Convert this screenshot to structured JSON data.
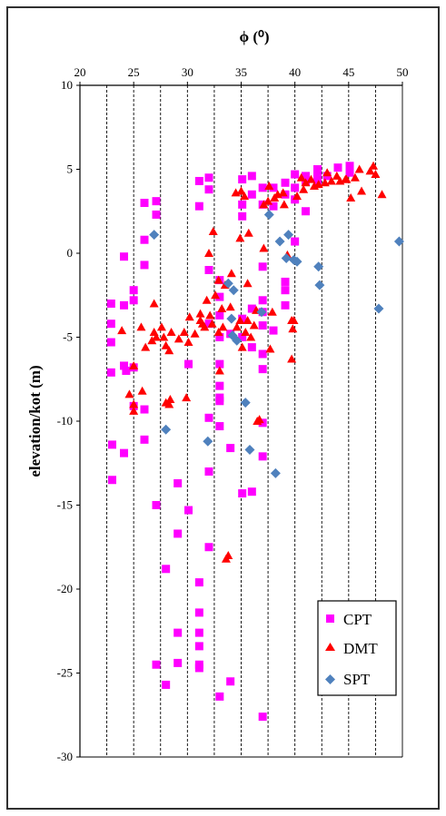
{
  "chart_data": {
    "type": "scatter",
    "title": "",
    "xlabel": "ϕ (⁰)",
    "ylabel": "elevation/kot (m)",
    "x_axis_position": "top",
    "xlim": [
      20,
      50
    ],
    "ylim": [
      -30,
      10
    ],
    "x_ticks": [
      "20",
      "25",
      "30",
      "35",
      "40",
      "45",
      "50"
    ],
    "y_ticks": [
      "10",
      "5",
      "0",
      "-5",
      "-10",
      "-15",
      "-20",
      "-25",
      "-30"
    ],
    "grid": "vertical dashed lines at every 2.5 degrees",
    "legend_position": "bottom-right",
    "series": [
      {
        "name": "CPT",
        "marker": "square",
        "color": "#ff00ff",
        "points": [
          [
            22.9,
            -3.0
          ],
          [
            22.9,
            -4.2
          ],
          [
            22.9,
            -5.3
          ],
          [
            22.9,
            -7.1
          ],
          [
            23.0,
            -11.4
          ],
          [
            23.0,
            -13.5
          ],
          [
            24.1,
            -0.2
          ],
          [
            24.1,
            -3.1
          ],
          [
            24.1,
            -6.7
          ],
          [
            24.1,
            -11.9
          ],
          [
            24.3,
            -7.0
          ],
          [
            25.0,
            -2.2
          ],
          [
            25.0,
            -2.8
          ],
          [
            25.0,
            -6.8
          ],
          [
            25.0,
            -9.1
          ],
          [
            26.0,
            3.0
          ],
          [
            26.0,
            0.8
          ],
          [
            26.0,
            -0.7
          ],
          [
            26.0,
            -9.3
          ],
          [
            26.0,
            -11.1
          ],
          [
            27.1,
            3.1
          ],
          [
            27.1,
            2.3
          ],
          [
            27.1,
            -15.0
          ],
          [
            27.1,
            -24.5
          ],
          [
            28.0,
            -18.8
          ],
          [
            28.0,
            -25.7
          ],
          [
            29.1,
            -13.7
          ],
          [
            29.1,
            -16.7
          ],
          [
            29.1,
            -22.6
          ],
          [
            29.1,
            -24.4
          ],
          [
            30.1,
            -6.6
          ],
          [
            30.1,
            -15.3
          ],
          [
            31.1,
            4.3
          ],
          [
            31.1,
            2.8
          ],
          [
            31.1,
            -19.6
          ],
          [
            31.1,
            -21.4
          ],
          [
            31.1,
            -22.6
          ],
          [
            31.1,
            -23.4
          ],
          [
            31.1,
            -24.5
          ],
          [
            31.1,
            -24.7
          ],
          [
            32.0,
            4.5
          ],
          [
            32.0,
            3.8
          ],
          [
            32.0,
            -1.0
          ],
          [
            32.0,
            -4.2
          ],
          [
            32.0,
            -9.8
          ],
          [
            32.0,
            -13.0
          ],
          [
            32.0,
            -17.5
          ],
          [
            33.0,
            -1.6
          ],
          [
            33.0,
            -2.6
          ],
          [
            33.0,
            -3.7
          ],
          [
            33.0,
            -5.0
          ],
          [
            33.0,
            -6.6
          ],
          [
            33.0,
            -7.9
          ],
          [
            33.0,
            -8.6
          ],
          [
            33.0,
            -8.8
          ],
          [
            33.0,
            -10.3
          ],
          [
            33.0,
            -26.4
          ],
          [
            34.0,
            -4.8
          ],
          [
            34.0,
            -11.6
          ],
          [
            34.0,
            -25.5
          ],
          [
            35.1,
            4.4
          ],
          [
            35.1,
            2.9
          ],
          [
            35.1,
            2.2
          ],
          [
            35.1,
            -3.9
          ],
          [
            35.1,
            -5.0
          ],
          [
            35.1,
            -14.3
          ],
          [
            36.0,
            4.6
          ],
          [
            36.0,
            3.5
          ],
          [
            36.0,
            -3.3
          ],
          [
            36.0,
            -5.6
          ],
          [
            36.0,
            -14.2
          ],
          [
            37.0,
            3.9
          ],
          [
            37.0,
            2.9
          ],
          [
            37.0,
            -0.8
          ],
          [
            37.0,
            -2.8
          ],
          [
            37.0,
            -3.5
          ],
          [
            37.0,
            -4.3
          ],
          [
            37.0,
            -6.0
          ],
          [
            37.0,
            -6.9
          ],
          [
            37.0,
            -10.1
          ],
          [
            37.0,
            -12.1
          ],
          [
            37.0,
            -27.6
          ],
          [
            38.0,
            3.9
          ],
          [
            38.0,
            2.8
          ],
          [
            38.0,
            -4.6
          ],
          [
            39.1,
            4.2
          ],
          [
            39.1,
            3.5
          ],
          [
            39.1,
            -1.7
          ],
          [
            39.1,
            -2.2
          ],
          [
            39.1,
            -3.1
          ],
          [
            40.0,
            4.7
          ],
          [
            40.0,
            3.9
          ],
          [
            40.0,
            3.2
          ],
          [
            40.0,
            0.7
          ],
          [
            41.0,
            4.6
          ],
          [
            41.0,
            4.3
          ],
          [
            41.0,
            2.5
          ],
          [
            42.1,
            5.0
          ],
          [
            42.1,
            4.6
          ],
          [
            42.1,
            4.2
          ],
          [
            43.0,
            4.6
          ],
          [
            44.0,
            5.1
          ],
          [
            45.1,
            5.2
          ],
          [
            45.1,
            4.8
          ]
        ]
      },
      {
        "name": "DMT",
        "marker": "triangle",
        "color": "#ff0000",
        "points": [
          [
            23.9,
            -4.6
          ],
          [
            24.6,
            -8.4
          ],
          [
            25.0,
            -6.7
          ],
          [
            25.0,
            -9.0
          ],
          [
            25.0,
            -9.4
          ],
          [
            25.7,
            -4.4
          ],
          [
            25.8,
            -8.2
          ],
          [
            26.1,
            -5.6
          ],
          [
            26.7,
            -5.2
          ],
          [
            26.9,
            -3.0
          ],
          [
            26.9,
            -4.7
          ],
          [
            27.1,
            -5.0
          ],
          [
            27.6,
            -4.4
          ],
          [
            27.8,
            -5.0
          ],
          [
            28.0,
            -5.5
          ],
          [
            28.0,
            -8.9
          ],
          [
            28.3,
            -5.8
          ],
          [
            28.3,
            -9.0
          ],
          [
            28.4,
            -8.7
          ],
          [
            28.5,
            -4.7
          ],
          [
            29.2,
            -5.1
          ],
          [
            29.7,
            -4.7
          ],
          [
            29.9,
            -8.6
          ],
          [
            30.1,
            -5.3
          ],
          [
            30.2,
            -3.8
          ],
          [
            30.7,
            -4.8
          ],
          [
            31.2,
            -3.6
          ],
          [
            31.2,
            -4.0
          ],
          [
            31.4,
            -4.2
          ],
          [
            31.6,
            -4.4
          ],
          [
            31.8,
            -2.8
          ],
          [
            32.0,
            0.0
          ],
          [
            32.1,
            -3.7
          ],
          [
            32.3,
            -4.2
          ],
          [
            32.4,
            1.3
          ],
          [
            32.6,
            -2.5
          ],
          [
            32.9,
            -1.6
          ],
          [
            32.9,
            -4.7
          ],
          [
            33.0,
            -7.0
          ],
          [
            33.2,
            -3.3
          ],
          [
            33.3,
            -4.4
          ],
          [
            33.5,
            -1.9
          ],
          [
            33.6,
            -18.2
          ],
          [
            33.8,
            -18.0
          ],
          [
            34.0,
            -3.2
          ],
          [
            34.1,
            -1.2
          ],
          [
            34.5,
            3.6
          ],
          [
            34.6,
            -4.4
          ],
          [
            34.9,
            0.9
          ],
          [
            34.9,
            -4.0
          ],
          [
            35.0,
            3.7
          ],
          [
            35.1,
            -5.6
          ],
          [
            35.3,
            3.4
          ],
          [
            35.4,
            -4.7
          ],
          [
            35.6,
            -1.8
          ],
          [
            35.6,
            -4.0
          ],
          [
            35.7,
            1.2
          ],
          [
            35.9,
            -5.0
          ],
          [
            36.2,
            -4.3
          ],
          [
            36.4,
            -3.4
          ],
          [
            36.5,
            -10.0
          ],
          [
            36.7,
            -9.9
          ],
          [
            37.1,
            0.3
          ],
          [
            37.1,
            2.9
          ],
          [
            37.5,
            3.1
          ],
          [
            37.6,
            4.0
          ],
          [
            37.7,
            -5.7
          ],
          [
            37.9,
            -3.5
          ],
          [
            38.1,
            3.3
          ],
          [
            38.4,
            3.5
          ],
          [
            38.9,
            3.6
          ],
          [
            39.0,
            2.9
          ],
          [
            39.3,
            -0.1
          ],
          [
            39.7,
            -6.3
          ],
          [
            39.7,
            -4.0
          ],
          [
            39.8,
            -4.5
          ],
          [
            39.9,
            -4.0
          ],
          [
            40.2,
            3.4
          ],
          [
            40.6,
            4.5
          ],
          [
            40.8,
            3.8
          ],
          [
            41.0,
            4.2
          ],
          [
            41.5,
            4.4
          ],
          [
            41.8,
            4.0
          ],
          [
            42.2,
            4.1
          ],
          [
            42.8,
            4.2
          ],
          [
            43.0,
            4.8
          ],
          [
            43.4,
            4.3
          ],
          [
            43.9,
            4.6
          ],
          [
            44.2,
            4.3
          ],
          [
            44.7,
            4.4
          ],
          [
            44.8,
            4.4
          ],
          [
            45.2,
            3.3
          ],
          [
            45.6,
            4.5
          ],
          [
            46.0,
            5.0
          ],
          [
            46.2,
            3.7
          ],
          [
            47.0,
            4.9
          ],
          [
            47.3,
            5.2
          ],
          [
            47.5,
            4.7
          ],
          [
            48.1,
            3.5
          ]
        ]
      },
      {
        "name": "SPT",
        "marker": "diamond",
        "color": "#4f81bd",
        "points": [
          [
            26.9,
            1.1
          ],
          [
            28.0,
            -10.5
          ],
          [
            31.9,
            -11.2
          ],
          [
            33.8,
            -1.8
          ],
          [
            34.1,
            -3.9
          ],
          [
            34.2,
            -4.9
          ],
          [
            34.3,
            -2.2
          ],
          [
            34.6,
            -5.2
          ],
          [
            35.4,
            -8.9
          ],
          [
            35.8,
            -11.7
          ],
          [
            36.9,
            -3.5
          ],
          [
            37.6,
            2.3
          ],
          [
            38.2,
            -13.1
          ],
          [
            38.6,
            0.7
          ],
          [
            39.2,
            -0.3
          ],
          [
            39.4,
            1.1
          ],
          [
            39.9,
            -0.4
          ],
          [
            40.2,
            -0.5
          ],
          [
            42.2,
            -0.8
          ],
          [
            42.3,
            -1.9
          ],
          [
            47.8,
            -3.3
          ],
          [
            49.7,
            0.7
          ]
        ]
      }
    ]
  }
}
